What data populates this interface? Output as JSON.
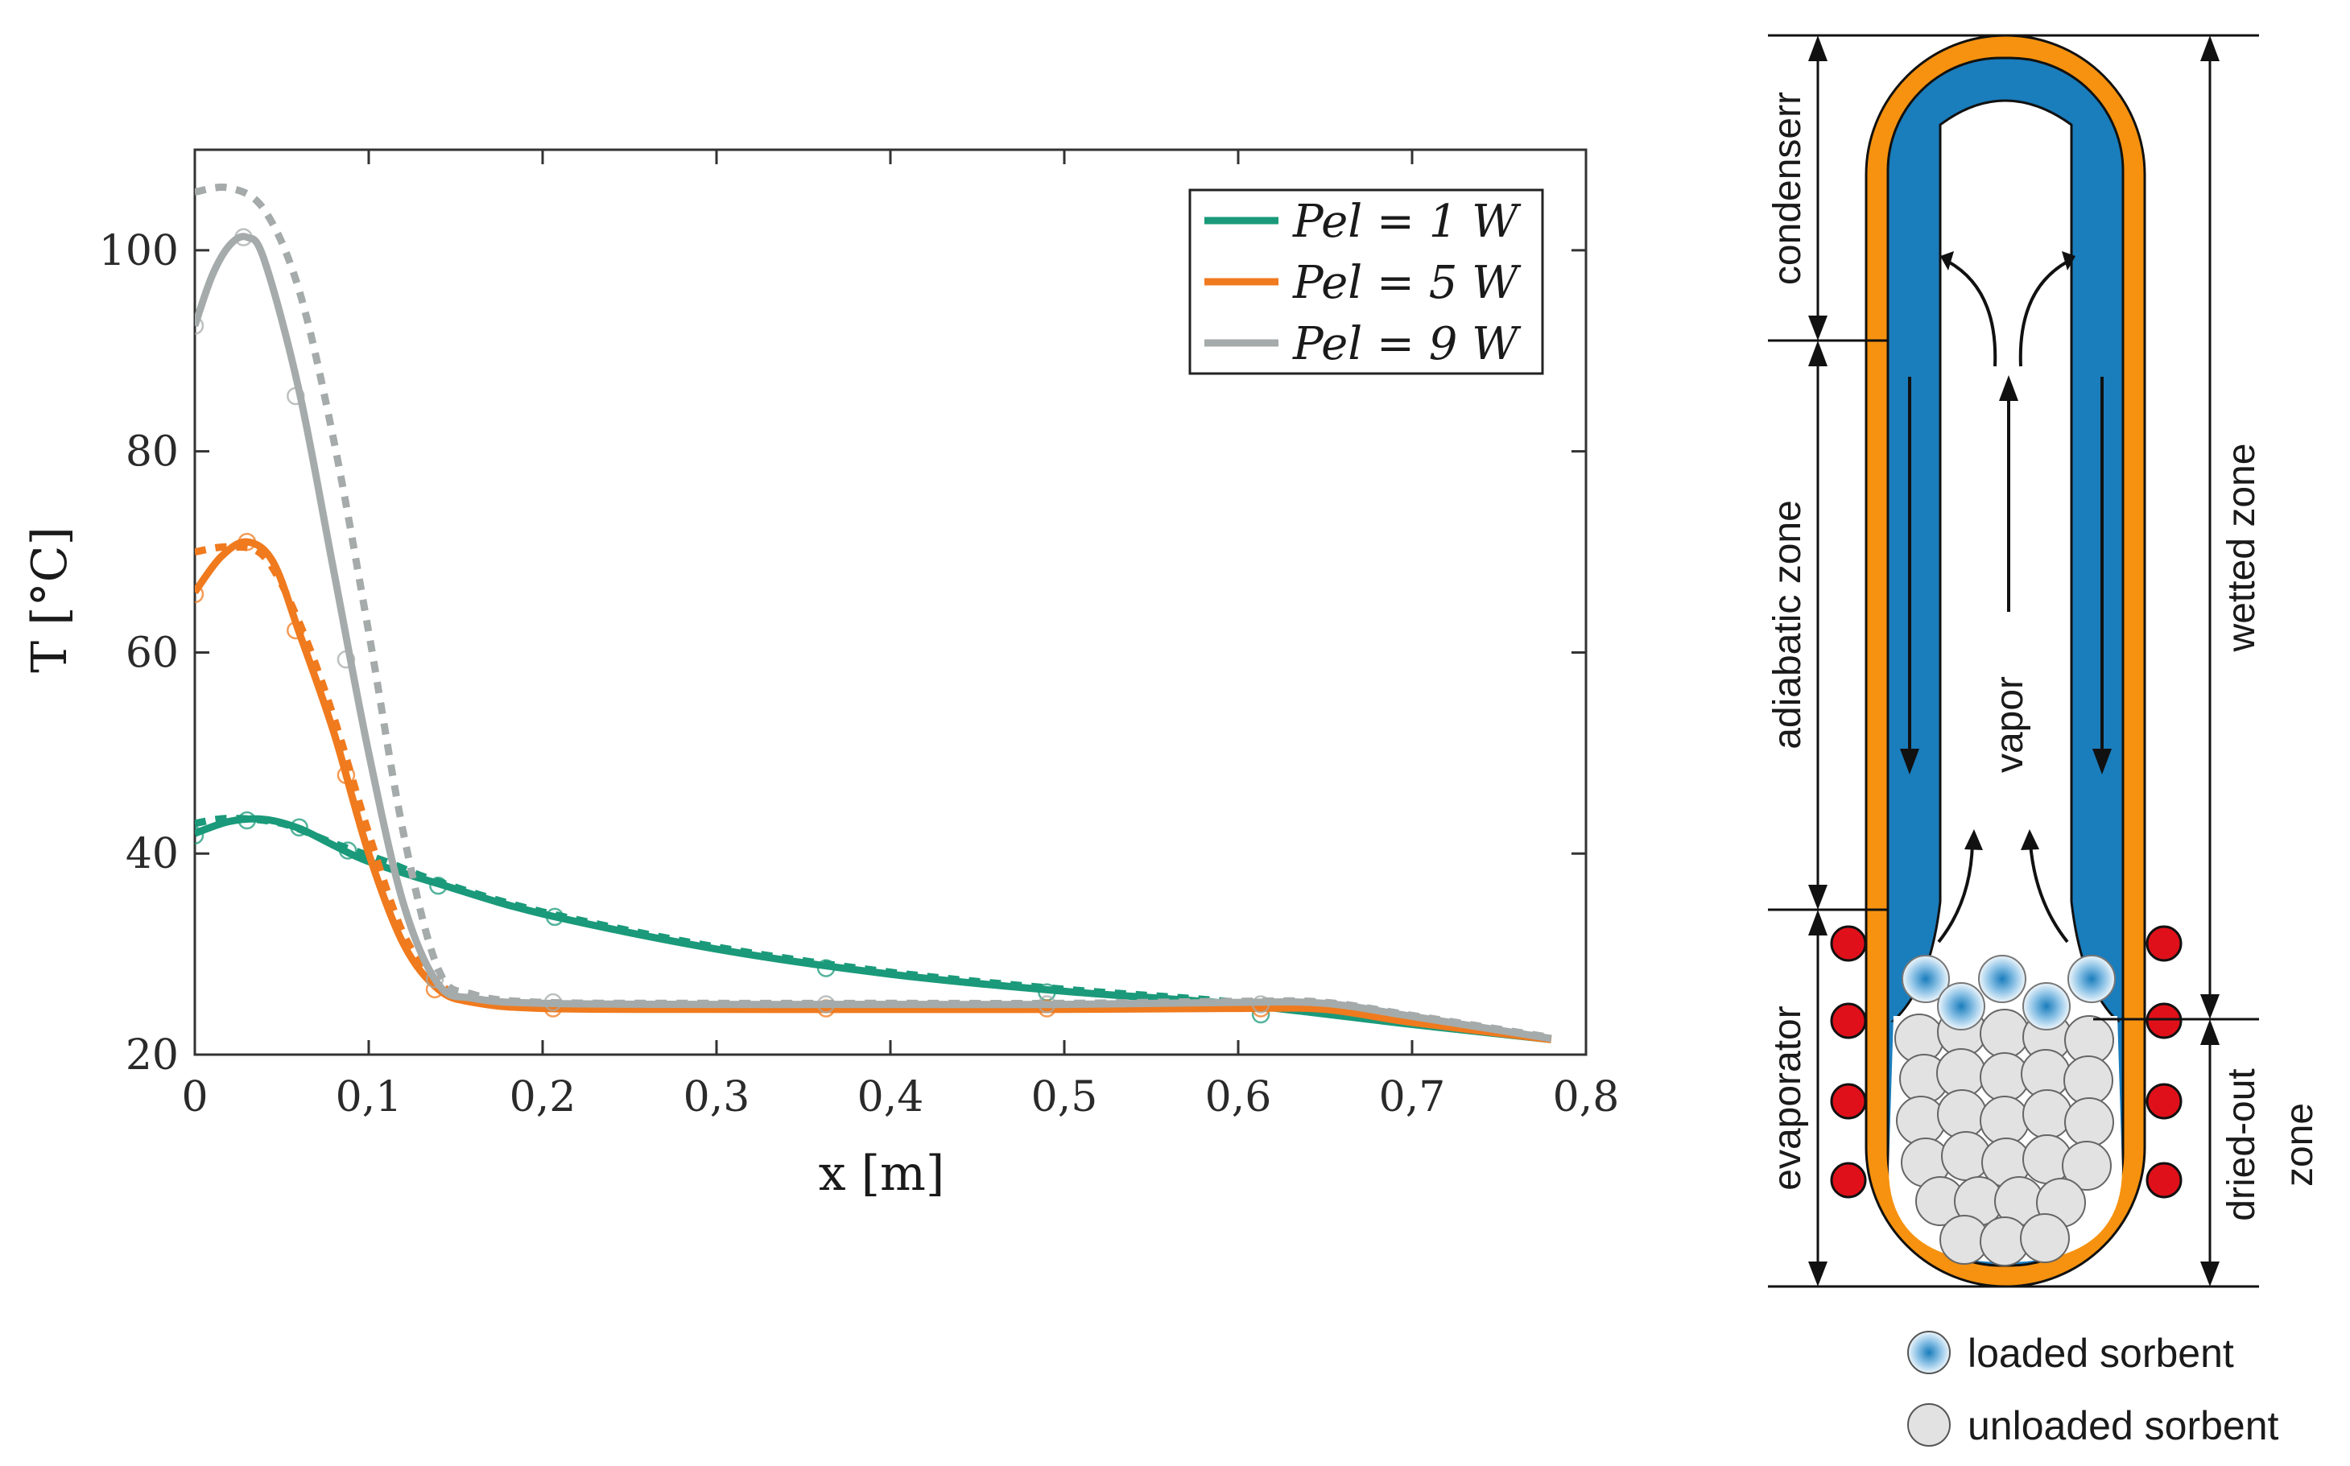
{
  "chart_data": {
    "type": "line",
    "title": "",
    "xlabel": "x [m]",
    "ylabel": "T [°C]",
    "xlim": [
      0,
      0.8
    ],
    "ylim": [
      20,
      110
    ],
    "x_ticks": [
      0,
      0.1,
      0.2,
      0.3,
      0.4,
      0.5,
      0.6,
      0.7,
      0.8
    ],
    "x_tick_labels": [
      "0",
      "0,1",
      "0,2",
      "0,3",
      "0,4",
      "0,5",
      "0,6",
      "0,7",
      "0,8"
    ],
    "y_ticks": [
      20,
      40,
      60,
      80,
      100
    ],
    "y_tick_labels": [
      "20",
      "40",
      "60",
      "80",
      "100"
    ],
    "legend_position": "top-right",
    "series": [
      {
        "name": "P_el = 1 W",
        "legend_label": "Pel = 1 W",
        "color": "#1a9a7a",
        "solid": [
          [
            0,
            42
          ],
          [
            0.02,
            43.2
          ],
          [
            0.04,
            43.4
          ],
          [
            0.06,
            42.5
          ],
          [
            0.08,
            40.8
          ],
          [
            0.1,
            39.2
          ],
          [
            0.14,
            37
          ],
          [
            0.2,
            34
          ],
          [
            0.3,
            30.5
          ],
          [
            0.4,
            28
          ],
          [
            0.5,
            26.3
          ],
          [
            0.6,
            25
          ],
          [
            0.7,
            23
          ],
          [
            0.78,
            21.5
          ]
        ],
        "dashed": [
          [
            0,
            43
          ],
          [
            0.02,
            43.5
          ],
          [
            0.05,
            43
          ],
          [
            0.08,
            41
          ],
          [
            0.11,
            39.2
          ],
          [
            0.14,
            37.2
          ],
          [
            0.2,
            34.2
          ],
          [
            0.3,
            30.7
          ],
          [
            0.4,
            28.2
          ],
          [
            0.5,
            26.5
          ],
          [
            0.6,
            25.2
          ],
          [
            0.7,
            23.2
          ],
          [
            0.78,
            21.6
          ]
        ],
        "markers": [
          [
            0,
            41.8
          ],
          [
            0.03,
            43.3
          ],
          [
            0.06,
            42.6
          ],
          [
            0.088,
            40.3
          ],
          [
            0.14,
            36.8
          ],
          [
            0.207,
            33.7
          ],
          [
            0.363,
            28.6
          ],
          [
            0.49,
            26.2
          ],
          [
            0.613,
            24
          ]
        ]
      },
      {
        "name": "P_el = 5 W",
        "legend_label": "Pel = 5 W",
        "color": "#f07a1e",
        "solid": [
          [
            0,
            66
          ],
          [
            0.015,
            69.5
          ],
          [
            0.03,
            71
          ],
          [
            0.045,
            69
          ],
          [
            0.06,
            62
          ],
          [
            0.08,
            52
          ],
          [
            0.1,
            40
          ],
          [
            0.12,
            31
          ],
          [
            0.14,
            26.5
          ],
          [
            0.16,
            25.2
          ],
          [
            0.2,
            24.6
          ],
          [
            0.3,
            24.5
          ],
          [
            0.4,
            24.5
          ],
          [
            0.5,
            24.5
          ],
          [
            0.6,
            24.6
          ],
          [
            0.65,
            24.5
          ],
          [
            0.7,
            23.2
          ],
          [
            0.78,
            21.5
          ]
        ],
        "dashed": [
          [
            0,
            70
          ],
          [
            0.02,
            70.5
          ],
          [
            0.04,
            69.5
          ],
          [
            0.06,
            63
          ],
          [
            0.08,
            53.5
          ],
          [
            0.1,
            42
          ],
          [
            0.12,
            32
          ],
          [
            0.14,
            27.2
          ],
          [
            0.16,
            25.4
          ],
          [
            0.2,
            24.7
          ],
          [
            0.3,
            24.6
          ],
          [
            0.4,
            24.6
          ],
          [
            0.5,
            24.6
          ],
          [
            0.6,
            24.7
          ],
          [
            0.65,
            24.6
          ],
          [
            0.7,
            23.3
          ],
          [
            0.78,
            21.6
          ]
        ],
        "markers": [
          [
            0,
            65.8
          ],
          [
            0.03,
            71
          ],
          [
            0.058,
            62.2
          ],
          [
            0.087,
            47.8
          ],
          [
            0.138,
            26.5
          ],
          [
            0.206,
            24.6
          ],
          [
            0.363,
            24.6
          ],
          [
            0.49,
            24.6
          ],
          [
            0.613,
            24.6
          ]
        ]
      },
      {
        "name": "P_el = 9 W",
        "legend_label": "Pel = 9 W",
        "color": "#a5abaa",
        "solid": [
          [
            0,
            92.5
          ],
          [
            0.01,
            97.5
          ],
          [
            0.02,
            100.5
          ],
          [
            0.03,
            101.3
          ],
          [
            0.04,
            99
          ],
          [
            0.06,
            86
          ],
          [
            0.08,
            68
          ],
          [
            0.1,
            50
          ],
          [
            0.12,
            35
          ],
          [
            0.14,
            27
          ],
          [
            0.16,
            25.6
          ],
          [
            0.2,
            25.1
          ],
          [
            0.3,
            25
          ],
          [
            0.4,
            25
          ],
          [
            0.5,
            25
          ],
          [
            0.6,
            25.2
          ],
          [
            0.65,
            25.1
          ],
          [
            0.7,
            23.8
          ],
          [
            0.78,
            21.6
          ]
        ],
        "dashed": [
          [
            0,
            105.8
          ],
          [
            0.02,
            106.2
          ],
          [
            0.04,
            104
          ],
          [
            0.06,
            96
          ],
          [
            0.08,
            81
          ],
          [
            0.1,
            62
          ],
          [
            0.12,
            42
          ],
          [
            0.14,
            28.5
          ],
          [
            0.16,
            26
          ],
          [
            0.2,
            25.2
          ],
          [
            0.3,
            25.1
          ],
          [
            0.4,
            25.1
          ],
          [
            0.5,
            25.1
          ],
          [
            0.6,
            25.3
          ],
          [
            0.65,
            25.2
          ],
          [
            0.7,
            23.9
          ],
          [
            0.78,
            21.7
          ]
        ],
        "markers": [
          [
            0,
            92.5
          ],
          [
            0.028,
            101.3
          ],
          [
            0.058,
            85.5
          ],
          [
            0.087,
            59.3
          ],
          [
            0.138,
            27.5
          ],
          [
            0.206,
            25.2
          ],
          [
            0.363,
            25
          ],
          [
            0.49,
            25
          ],
          [
            0.613,
            25
          ]
        ]
      }
    ]
  },
  "diagram": {
    "labels": {
      "condenser": "condenserr",
      "adiabatic": "adiabatic zone",
      "evaporator": "evaporator",
      "wetted": "wetted zone",
      "dried_out_line1": "dried-out",
      "dried_out_line2": "zone",
      "vapor": "vapor"
    },
    "legend": {
      "loaded": "loaded sorbent",
      "unloaded": "unloaded sorbent"
    },
    "colors": {
      "shell": "#f6920f",
      "wick": "#1a7dbc",
      "heater": "#e0101a",
      "sorbent": "#e2e2e2"
    }
  }
}
